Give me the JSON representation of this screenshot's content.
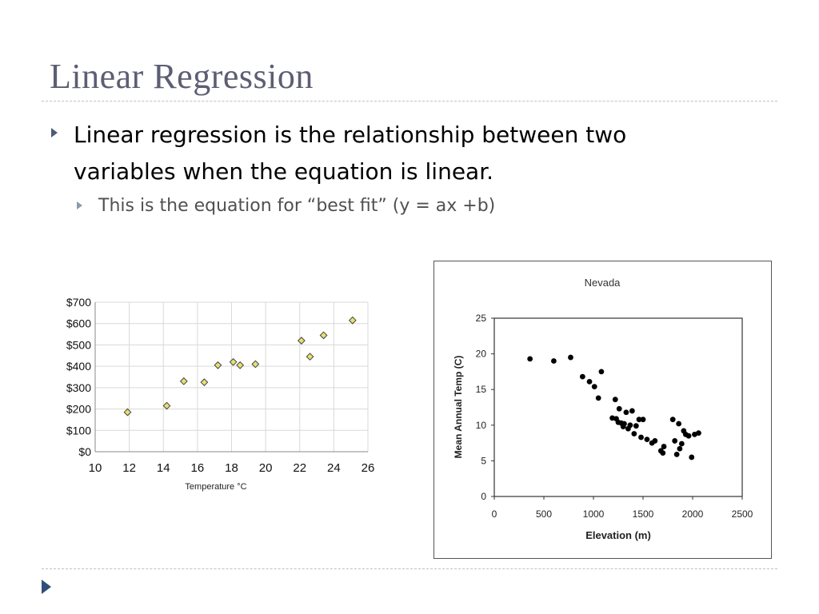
{
  "slide": {
    "title": "Linear Regression",
    "bullet1": "Linear regression is the relationship between two variables when the equation is linear.",
    "bullet2": "This is the equation for “best fit” (y = ax +b)"
  },
  "chart_data": [
    {
      "type": "scatter",
      "title": "",
      "xlabel": "Temperature °C",
      "ylabel": "",
      "xlim": [
        10,
        26
      ],
      "ylim": [
        0,
        700
      ],
      "x_ticks": [
        "10",
        "12",
        "14",
        "16",
        "18",
        "20",
        "22",
        "24",
        "26"
      ],
      "y_ticks": [
        "$0",
        "$100",
        "$200",
        "$300",
        "$400",
        "$500",
        "$600",
        "$700"
      ],
      "grid": true,
      "marker": "diamond",
      "marker_color": "#e8e070",
      "x": [
        11.9,
        14.2,
        15.2,
        16.4,
        17.2,
        18.1,
        18.5,
        19.4,
        22.1,
        22.6,
        23.4,
        25.1
      ],
      "y": [
        185,
        215,
        330,
        325,
        405,
        420,
        405,
        410,
        520,
        445,
        545,
        615
      ]
    },
    {
      "type": "scatter",
      "title": "Nevada",
      "xlabel": "Elevation (m)",
      "ylabel": "Mean Annual Temp (C)",
      "xlim": [
        0,
        2500
      ],
      "ylim": [
        0,
        25
      ],
      "x_ticks": [
        "0",
        "500",
        "1000",
        "1500",
        "2000",
        "2500"
      ],
      "y_ticks": [
        "0",
        "5",
        "10",
        "15",
        "20",
        "25"
      ],
      "grid": false,
      "marker": "circle",
      "marker_color": "#000000",
      "x": [
        360,
        600,
        770,
        890,
        960,
        1010,
        1050,
        1080,
        1190,
        1220,
        1230,
        1250,
        1260,
        1280,
        1300,
        1310,
        1330,
        1350,
        1370,
        1390,
        1410,
        1430,
        1460,
        1480,
        1500,
        1540,
        1590,
        1620,
        1680,
        1700,
        1710,
        1800,
        1820,
        1840,
        1860,
        1870,
        1890,
        1910,
        1930,
        1960,
        1990,
        2020,
        2060
      ],
      "y": [
        19.3,
        19.0,
        19.5,
        16.8,
        16.1,
        15.4,
        13.8,
        17.5,
        11.0,
        13.6,
        10.9,
        10.4,
        12.3,
        10.3,
        9.8,
        10.2,
        11.8,
        9.5,
        10.0,
        12.0,
        8.8,
        9.9,
        10.8,
        8.3,
        10.8,
        8.0,
        7.5,
        7.8,
        6.4,
        6.1,
        7.0,
        10.8,
        7.8,
        5.9,
        10.2,
        6.7,
        7.4,
        9.2,
        8.7,
        8.5,
        5.5,
        8.7,
        8.9
      ]
    }
  ]
}
